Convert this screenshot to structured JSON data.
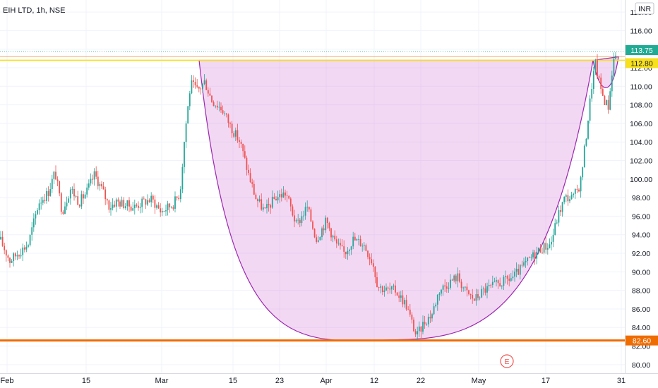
{
  "chart_data": {
    "type": "candlestick",
    "title": "EIH LTD, 1h, NSE",
    "currency": "INR",
    "y_ticks": [
      80,
      82,
      84,
      86,
      88,
      90,
      92,
      94,
      96,
      98,
      100,
      102,
      104,
      106,
      108,
      110,
      112,
      114,
      116,
      118
    ],
    "y_tick_labels": [
      "80.00",
      "82.00",
      "84.00",
      "86.00",
      "88.00",
      "90.00",
      "92.00",
      "94.00",
      "96.00",
      "98.00",
      "100.00",
      "102.00",
      "104.00",
      "106.00",
      "108.00",
      "110.00",
      "112.00",
      "114.00",
      "116.00",
      "118.00"
    ],
    "ylim": [
      79,
      119.3
    ],
    "x_labels": [
      "Feb",
      "15",
      "Mar",
      "15",
      "23",
      "Apr",
      "12",
      "22",
      "May",
      "17",
      "31"
    ],
    "levels": [
      {
        "name": "resistance",
        "value": 112.8,
        "color": "#f7e01c"
      },
      {
        "name": "support",
        "value": 82.6,
        "color": "#ef6c00"
      }
    ],
    "price_tags": [
      {
        "label": "113.75",
        "value": 113.75,
        "bg": "#22ab94",
        "fg": "#ffffff"
      },
      {
        "label": "112.80",
        "value": 112.8,
        "bg": "#f7e01c",
        "fg": "#131722"
      },
      {
        "label": "82.60",
        "value": 82.6,
        "bg": "#ef6c00",
        "fg": "#ffffff"
      }
    ],
    "pattern": {
      "name": "cup-and-handle",
      "fill": "#d67ddb",
      "stroke": "#9c27b0",
      "rim": 112.8,
      "bottom": 82.7
    },
    "earnings_marker": "E",
    "colors": {
      "up": "#26a69a",
      "down": "#ef5350"
    },
    "anchors": [
      [
        0,
        93.5
      ],
      [
        14,
        91.2
      ],
      [
        28,
        92.2
      ],
      [
        40,
        93.0
      ],
      [
        55,
        97.5
      ],
      [
        68,
        98.5
      ],
      [
        78,
        100.8
      ],
      [
        88,
        96.5
      ],
      [
        100,
        99.0
      ],
      [
        112,
        97.5
      ],
      [
        122,
        98.5
      ],
      [
        134,
        100.5
      ],
      [
        145,
        98.8
      ],
      [
        155,
        97.0
      ],
      [
        165,
        97.6
      ],
      [
        175,
        97.3
      ],
      [
        190,
        97.0
      ],
      [
        205,
        97.6
      ],
      [
        215,
        97.8
      ],
      [
        228,
        96.5
      ],
      [
        245,
        97.3
      ],
      [
        255,
        98.5
      ],
      [
        262,
        105.0
      ],
      [
        270,
        110.3
      ],
      [
        280,
        109.5
      ],
      [
        290,
        110.5
      ],
      [
        300,
        108.5
      ],
      [
        315,
        107.5
      ],
      [
        328,
        105.5
      ],
      [
        340,
        104.0
      ],
      [
        352,
        100.5
      ],
      [
        362,
        98.0
      ],
      [
        375,
        96.5
      ],
      [
        390,
        98.0
      ],
      [
        405,
        98.5
      ],
      [
        420,
        95.0
      ],
      [
        435,
        97.0
      ],
      [
        448,
        93.5
      ],
      [
        462,
        95.5
      ],
      [
        476,
        93.0
      ],
      [
        488,
        92.0
      ],
      [
        500,
        93.5
      ],
      [
        515,
        93.0
      ],
      [
        528,
        91.0
      ],
      [
        535,
        88.5
      ],
      [
        548,
        88.0
      ],
      [
        560,
        88.0
      ],
      [
        575,
        86.5
      ],
      [
        590,
        83.0
      ],
      [
        600,
        84.5
      ],
      [
        612,
        85.5
      ],
      [
        622,
        88.0
      ],
      [
        635,
        88.8
      ],
      [
        648,
        89.5
      ],
      [
        660,
        87.8
      ],
      [
        672,
        87.0
      ],
      [
        685,
        88.0
      ],
      [
        700,
        88.5
      ],
      [
        715,
        89.0
      ],
      [
        728,
        89.5
      ],
      [
        740,
        90.5
      ],
      [
        752,
        91.5
      ],
      [
        765,
        92.5
      ],
      [
        780,
        93.0
      ],
      [
        790,
        96.0
      ],
      [
        800,
        98.0
      ],
      [
        812,
        98.0
      ],
      [
        822,
        99.5
      ],
      [
        830,
        104.5
      ],
      [
        838,
        110.0
      ],
      [
        843,
        112.5
      ],
      [
        850,
        110.0
      ],
      [
        856,
        108.5
      ],
      [
        862,
        107.8
      ],
      [
        868,
        112.5
      ],
      [
        873,
        113.75
      ]
    ]
  }
}
